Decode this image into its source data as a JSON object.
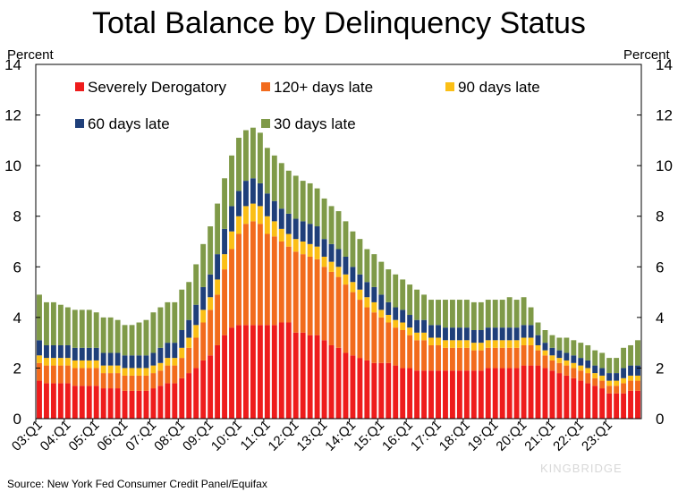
{
  "chart_data": {
    "type": "bar",
    "stacked": true,
    "title": "Total Balance by Delinquency Status",
    "ylabel_left": "Percent",
    "ylabel_right": "Percent",
    "ylim": [
      0,
      14
    ],
    "yticks": [
      0,
      2,
      4,
      6,
      8,
      10,
      12,
      14
    ],
    "grid": false,
    "legend_position": "top-left, inside plot",
    "source": "Source: New York Fed Consumer Credit Panel/Equifax",
    "watermark": "KINGBRIDGE",
    "x_tick_labels": [
      "03:Q1",
      "04:Q1",
      "05:Q1",
      "06:Q1",
      "07:Q1",
      "08:Q1",
      "09:Q1",
      "10:Q1",
      "11:Q1",
      "12:Q1",
      "13:Q1",
      "14:Q1",
      "15:Q1",
      "16:Q1",
      "17:Q1",
      "18:Q1",
      "19:Q1",
      "20:Q1",
      "21:Q1",
      "22:Q1",
      "23:Q1"
    ],
    "first_quarter": "2003:Q1",
    "series": [
      {
        "name": "Severely Derogatory",
        "color": "#ee1c1c",
        "values": [
          1.5,
          1.4,
          1.4,
          1.4,
          1.4,
          1.3,
          1.3,
          1.3,
          1.3,
          1.2,
          1.2,
          1.2,
          1.1,
          1.1,
          1.1,
          1.1,
          1.2,
          1.3,
          1.4,
          1.4,
          1.6,
          1.8,
          2.0,
          2.3,
          2.5,
          2.9,
          3.3,
          3.6,
          3.7,
          3.7,
          3.7,
          3.7,
          3.7,
          3.7,
          3.8,
          3.8,
          3.4,
          3.4,
          3.3,
          3.3,
          3.1,
          2.9,
          2.8,
          2.6,
          2.5,
          2.4,
          2.3,
          2.2,
          2.2,
          2.2,
          2.1,
          2.0,
          2.0,
          1.9,
          1.9,
          1.9,
          1.9,
          1.9,
          1.9,
          1.9,
          1.9,
          1.9,
          1.9,
          2.0,
          2.0,
          2.0,
          2.0,
          2.0,
          2.1,
          2.1,
          2.1,
          2.0,
          1.9,
          1.8,
          1.7,
          1.6,
          1.5,
          1.4,
          1.3,
          1.2,
          1.0,
          1.0,
          1.0,
          1.1,
          1.1
        ]
      },
      {
        "name": "120+ days late",
        "color": "#f26b1d",
        "values": [
          0.7,
          0.7,
          0.7,
          0.7,
          0.7,
          0.7,
          0.7,
          0.7,
          0.7,
          0.6,
          0.6,
          0.6,
          0.6,
          0.6,
          0.6,
          0.6,
          0.6,
          0.6,
          0.7,
          0.7,
          0.8,
          1.0,
          1.2,
          1.5,
          1.8,
          2.0,
          2.6,
          3.1,
          3.6,
          4.0,
          4.1,
          4.0,
          3.6,
          3.5,
          3.2,
          3.0,
          3.2,
          3.1,
          3.1,
          3.0,
          2.9,
          2.9,
          2.8,
          2.7,
          2.5,
          2.3,
          2.1,
          2.0,
          1.8,
          1.6,
          1.5,
          1.5,
          1.3,
          1.2,
          1.2,
          1.0,
          1.0,
          0.9,
          0.9,
          0.9,
          0.9,
          0.8,
          0.8,
          0.8,
          0.8,
          0.8,
          0.8,
          0.8,
          0.8,
          0.8,
          0.6,
          0.5,
          0.4,
          0.4,
          0.4,
          0.4,
          0.4,
          0.4,
          0.3,
          0.3,
          0.3,
          0.3,
          0.4,
          0.4,
          0.4
        ]
      },
      {
        "name": "90 days late",
        "color": "#fbbf16",
        "values": [
          0.3,
          0.3,
          0.3,
          0.3,
          0.3,
          0.3,
          0.3,
          0.3,
          0.3,
          0.3,
          0.3,
          0.3,
          0.3,
          0.3,
          0.3,
          0.3,
          0.3,
          0.3,
          0.3,
          0.3,
          0.4,
          0.4,
          0.5,
          0.5,
          0.5,
          0.6,
          0.6,
          0.7,
          0.7,
          0.7,
          0.7,
          0.7,
          0.7,
          0.6,
          0.5,
          0.5,
          0.5,
          0.5,
          0.5,
          0.5,
          0.4,
          0.4,
          0.4,
          0.4,
          0.4,
          0.4,
          0.4,
          0.4,
          0.3,
          0.3,
          0.3,
          0.3,
          0.3,
          0.3,
          0.3,
          0.3,
          0.3,
          0.3,
          0.3,
          0.3,
          0.3,
          0.3,
          0.3,
          0.3,
          0.3,
          0.3,
          0.3,
          0.3,
          0.3,
          0.3,
          0.2,
          0.2,
          0.2,
          0.2,
          0.2,
          0.2,
          0.2,
          0.2,
          0.2,
          0.2,
          0.2,
          0.2,
          0.2,
          0.2,
          0.2
        ]
      },
      {
        "name": "60 days late",
        "color": "#1f3f7a",
        "values": [
          0.6,
          0.5,
          0.5,
          0.5,
          0.5,
          0.5,
          0.5,
          0.5,
          0.5,
          0.5,
          0.5,
          0.5,
          0.5,
          0.5,
          0.5,
          0.5,
          0.5,
          0.6,
          0.6,
          0.6,
          0.7,
          0.7,
          0.8,
          0.9,
          0.9,
          1.0,
          1.0,
          1.0,
          1.0,
          1.0,
          1.0,
          0.9,
          0.9,
          0.8,
          0.8,
          0.8,
          0.8,
          0.8,
          0.8,
          0.8,
          0.7,
          0.7,
          0.7,
          0.7,
          0.6,
          0.6,
          0.6,
          0.6,
          0.6,
          0.5,
          0.5,
          0.5,
          0.5,
          0.5,
          0.5,
          0.5,
          0.5,
          0.5,
          0.5,
          0.5,
          0.5,
          0.5,
          0.5,
          0.5,
          0.5,
          0.5,
          0.5,
          0.5,
          0.5,
          0.5,
          0.4,
          0.3,
          0.3,
          0.3,
          0.3,
          0.3,
          0.3,
          0.3,
          0.3,
          0.3,
          0.3,
          0.3,
          0.4,
          0.4,
          0.4
        ]
      },
      {
        "name": "30 days late",
        "color": "#7f9a48",
        "values": [
          1.8,
          1.7,
          1.7,
          1.6,
          1.5,
          1.5,
          1.5,
          1.5,
          1.4,
          1.4,
          1.4,
          1.3,
          1.2,
          1.2,
          1.3,
          1.4,
          1.6,
          1.6,
          1.6,
          1.6,
          1.6,
          1.5,
          1.6,
          1.7,
          1.9,
          2.0,
          2.0,
          2.0,
          2.1,
          2.0,
          2.0,
          2.0,
          1.8,
          1.8,
          1.8,
          1.7,
          1.7,
          1.6,
          1.6,
          1.5,
          1.6,
          1.5,
          1.5,
          1.4,
          1.4,
          1.4,
          1.3,
          1.3,
          1.3,
          1.3,
          1.3,
          1.2,
          1.2,
          1.2,
          1.0,
          1.0,
          1.0,
          1.1,
          1.1,
          1.1,
          1.1,
          1.1,
          1.1,
          1.1,
          1.1,
          1.1,
          1.2,
          1.1,
          1.1,
          0.7,
          0.5,
          0.5,
          0.5,
          0.5,
          0.6,
          0.6,
          0.6,
          0.6,
          0.6,
          0.6,
          0.6,
          0.6,
          0.8,
          0.8,
          1.0
        ]
      }
    ]
  }
}
